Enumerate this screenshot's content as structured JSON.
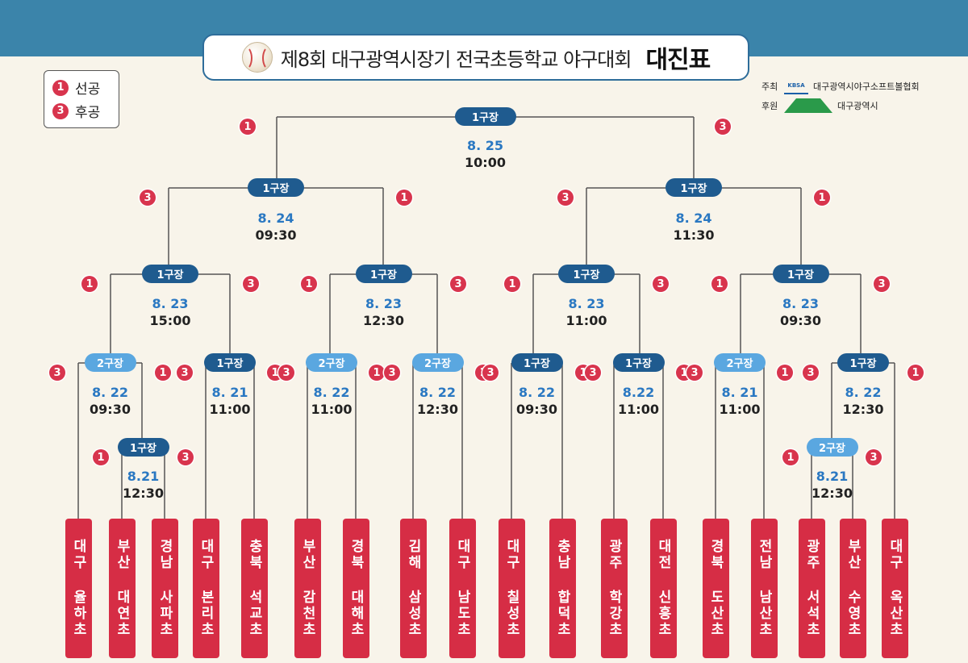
{
  "title": {
    "main": "제8회 대구광역시장기 전국초등학교 야구대회",
    "strong": "대진표"
  },
  "legend": {
    "first_num": "1",
    "first_label": "선공",
    "second_num": "3",
    "second_label": "후공"
  },
  "sponsors": {
    "host_role": "주최",
    "host_name": "대구광역시야구소프트볼협회",
    "host_logo_text": "KBSA",
    "support_role": "후원",
    "support_name": "대구광역시"
  },
  "colors": {
    "banner": "#3b84aa",
    "venue_primary": "#1f5b8f",
    "venue_secondary": "#5aa7e0",
    "team_box": "#d62d45",
    "date": "#2a78c2",
    "background": "#f8f4ea"
  },
  "teams": [
    "대구 율하초",
    "부산 대연초",
    "경남 사파초",
    "대구 본리초",
    "충북 석교초",
    "부산 감천초",
    "경북 대해초",
    "김해 삼성초",
    "대구 남도초",
    "대구 칠성초",
    "충남 합덕초",
    "광주 학강초",
    "대전 신흥초",
    "경북 도산초",
    "전남 남산초",
    "광주 서석초",
    "부산 수영초",
    "대구 옥산초"
  ],
  "games": [
    {
      "venue": "1구장",
      "date": "8. 25",
      "time": "10:00",
      "left": "1",
      "right": "3"
    },
    {
      "venue": "1구장",
      "date": "8. 24",
      "time": "09:30",
      "left": "3",
      "right": "1"
    },
    {
      "venue": "1구장",
      "date": "8. 24",
      "time": "11:30",
      "left": "3",
      "right": "1"
    },
    {
      "venue": "1구장",
      "date": "8. 23",
      "time": "15:00",
      "left": "1",
      "right": "3"
    },
    {
      "venue": "1구장",
      "date": "8. 23",
      "time": "12:30",
      "left": "1",
      "right": "3"
    },
    {
      "venue": "1구장",
      "date": "8. 23",
      "time": "11:00",
      "left": "1",
      "right": "3"
    },
    {
      "venue": "1구장",
      "date": "8. 23",
      "time": "09:30",
      "left": "1",
      "right": "3"
    },
    {
      "venue": "2구장",
      "date": "8. 22",
      "time": "09:30",
      "left": "3",
      "right": "1"
    },
    {
      "venue": "1구장",
      "date": "8. 21",
      "time": "11:00",
      "left": "3",
      "right": "1"
    },
    {
      "venue": "2구장",
      "date": "8. 22",
      "time": "11:00",
      "left": "3",
      "right": "1"
    },
    {
      "venue": "2구장",
      "date": "8. 22",
      "time": "12:30",
      "left": "3",
      "right": "1"
    },
    {
      "venue": "1구장",
      "date": "8. 22",
      "time": "09:30",
      "left": "3",
      "right": "1"
    },
    {
      "venue": "1구장",
      "date": "8.22",
      "time": "11:00",
      "left": "3",
      "right": "1"
    },
    {
      "venue": "2구장",
      "date": "8. 21",
      "time": "11:00",
      "left": "3",
      "right": "1"
    },
    {
      "venue": "1구장",
      "date": "8. 22",
      "time": "12:30",
      "left": "3",
      "right": "1"
    },
    {
      "venue": "1구장",
      "date": "8.21",
      "time": "12:30",
      "left": "1",
      "right": "3"
    },
    {
      "venue": "2구장",
      "date": "8.21",
      "time": "12:30",
      "left": "1",
      "right": "3"
    }
  ]
}
